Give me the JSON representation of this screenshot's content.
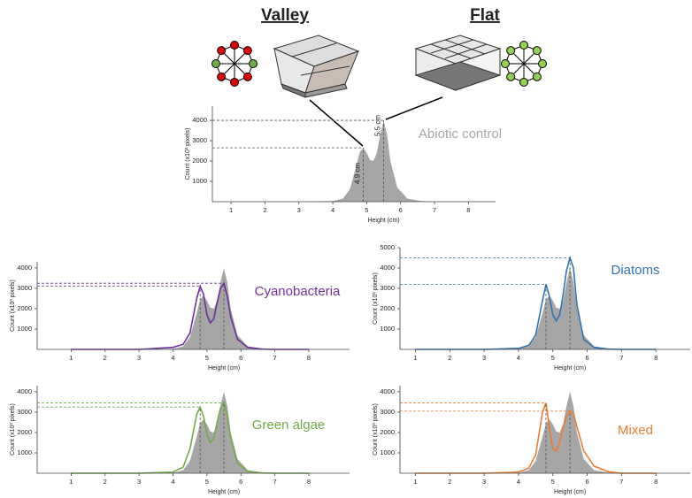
{
  "diagram": {
    "labels": [
      "Valley",
      "Flat"
    ]
  },
  "chart_data": [
    {
      "type": "line",
      "xlabel": "Height (cm)",
      "ylabel": "Count (x10³ pixels)",
      "xlim": [
        0.45,
        8.8
      ],
      "ylim": [
        0,
        4700
      ],
      "xticks": [
        1,
        2,
        3,
        4,
        5,
        6,
        7,
        8
      ],
      "yticks": [
        1000,
        2000,
        3000,
        4000
      ],
      "x": [
        1,
        3,
        4,
        4.3,
        4.5,
        4.7,
        4.8,
        4.9,
        5.0,
        5.1,
        5.2,
        5.3,
        5.4,
        5.5,
        5.6,
        5.7,
        5.9,
        6.2,
        6.6,
        7,
        8
      ],
      "series": [
        {
          "name": "Abiotic control",
          "color": "#a6a6a6",
          "fill": true,
          "values": [
            0,
            0,
            30,
            150,
            600,
            1800,
            2450,
            2650,
            2400,
            2050,
            2000,
            2400,
            3300,
            4000,
            3300,
            2000,
            700,
            150,
            30,
            0,
            0
          ]
        }
      ],
      "vlines": [
        4.9,
        5.5
      ],
      "hlines": [
        2650,
        4000
      ],
      "hline_color": "#555555",
      "annotations": [
        "4.9 cm",
        "5.5 cm"
      ]
    },
    {
      "type": "line",
      "xlabel": "Height (cm)",
      "ylabel": "Count (x10³ pixels)",
      "xlim": [
        0,
        9.2
      ],
      "ylim": [
        0,
        4300
      ],
      "xticks": [
        1,
        2,
        3,
        4,
        5,
        6,
        7,
        8
      ],
      "yticks": [
        1000,
        2000,
        3000,
        4000
      ],
      "x": [
        1,
        3,
        4,
        4.3,
        4.5,
        4.7,
        4.8,
        4.9,
        5.0,
        5.1,
        5.2,
        5.3,
        5.4,
        5.5,
        5.6,
        5.7,
        5.9,
        6.2,
        6.6,
        7,
        8
      ],
      "series": [
        {
          "color": "#a6a6a6",
          "fill": true,
          "values": [
            0,
            0,
            30,
            150,
            600,
            1800,
            2450,
            2650,
            2400,
            2050,
            2000,
            2400,
            3300,
            4000,
            3300,
            2000,
            700,
            150,
            30,
            0,
            0
          ]
        },
        {
          "name": "Cyanobacteria",
          "color": "#7030a0",
          "fill": false,
          "values": [
            0,
            0,
            100,
            250,
            800,
            2500,
            3100,
            2700,
            1700,
            1300,
            1500,
            2300,
            3000,
            3250,
            2600,
            1600,
            500,
            100,
            20,
            0,
            0
          ]
        }
      ],
      "vlines": [
        4.8,
        5.5
      ],
      "hlines": [
        3100,
        3250
      ],
      "hline_color": "#7030a0"
    },
    {
      "type": "line",
      "xlabel": "Height (cm)",
      "ylabel": "Count (x10³ pixels)",
      "xlim": [
        0.55,
        9.0
      ],
      "ylim": [
        0,
        5000
      ],
      "xticks": [
        1,
        2,
        3,
        4,
        5,
        6,
        7,
        8
      ],
      "yticks": [
        1000,
        2000,
        3000,
        4000,
        5000
      ],
      "x": [
        1,
        3,
        4,
        4.3,
        4.5,
        4.7,
        4.8,
        4.9,
        5.0,
        5.1,
        5.2,
        5.3,
        5.4,
        5.5,
        5.6,
        5.7,
        5.9,
        6.2,
        6.6,
        7,
        8
      ],
      "series": [
        {
          "color": "#a6a6a6",
          "fill": true,
          "values": [
            0,
            0,
            30,
            150,
            600,
            1800,
            2450,
            2650,
            2400,
            2050,
            2000,
            2400,
            3300,
            4000,
            3300,
            2000,
            700,
            150,
            30,
            0,
            0
          ]
        },
        {
          "name": "Diatoms",
          "color": "#2e75b6",
          "fill": false,
          "values": [
            0,
            0,
            50,
            200,
            700,
            2400,
            3200,
            2600,
            1700,
            1400,
            1700,
            2700,
            3900,
            4500,
            4000,
            2200,
            500,
            100,
            20,
            0,
            0
          ]
        }
      ],
      "vlines": [
        4.8,
        5.5
      ],
      "hlines": [
        3200,
        4500
      ],
      "hline_color": "#2e75b6"
    },
    {
      "type": "line",
      "xlabel": "Height (cm)",
      "ylabel": "Count (x10³ pixels)",
      "xlim": [
        0,
        9.2
      ],
      "ylim": [
        0,
        4300
      ],
      "xticks": [
        1,
        2,
        3,
        4,
        5,
        6,
        7,
        8
      ],
      "yticks": [
        1000,
        2000,
        3000,
        4000
      ],
      "x": [
        1,
        3,
        4,
        4.3,
        4.5,
        4.7,
        4.8,
        4.9,
        5.0,
        5.1,
        5.2,
        5.3,
        5.4,
        5.5,
        5.6,
        5.7,
        5.9,
        6.2,
        6.6,
        7,
        8
      ],
      "series": [
        {
          "color": "#a6a6a6",
          "fill": true,
          "values": [
            0,
            0,
            30,
            150,
            600,
            1800,
            2450,
            2650,
            2400,
            2050,
            2000,
            2400,
            3300,
            4000,
            3300,
            2000,
            700,
            150,
            30,
            0,
            0
          ]
        },
        {
          "name": "Green algae",
          "color": "#70ad47",
          "fill": false,
          "values": [
            0,
            0,
            60,
            300,
            1200,
            2900,
            3250,
            2800,
            1900,
            1500,
            1700,
            2500,
            3200,
            3450,
            2800,
            1700,
            500,
            100,
            20,
            0,
            0
          ]
        }
      ],
      "vlines": [
        4.8,
        5.5
      ],
      "hlines": [
        3250,
        3450
      ],
      "hline_color": "#70ad47"
    },
    {
      "type": "line",
      "xlabel": "Height (cm)",
      "ylabel": "Count (x10³ pixels)",
      "xlim": [
        0.55,
        9.0
      ],
      "ylim": [
        0,
        4300
      ],
      "xticks": [
        1,
        2,
        3,
        4,
        5,
        6,
        7,
        8
      ],
      "yticks": [
        1000,
        2000,
        3000,
        4000
      ],
      "x": [
        1,
        3,
        4,
        4.3,
        4.5,
        4.7,
        4.8,
        4.9,
        5.0,
        5.1,
        5.2,
        5.3,
        5.4,
        5.5,
        5.6,
        5.7,
        5.9,
        6.2,
        6.6,
        7,
        8
      ],
      "series": [
        {
          "color": "#a6a6a6",
          "fill": true,
          "values": [
            0,
            0,
            30,
            150,
            600,
            1800,
            2450,
            2650,
            2400,
            2050,
            2000,
            2400,
            3300,
            4000,
            3300,
            2000,
            700,
            150,
            30,
            0,
            0
          ]
        },
        {
          "name": "Mixed",
          "color": "#ed7d31",
          "fill": false,
          "values": [
            0,
            0,
            60,
            250,
            900,
            3000,
            3450,
            2200,
            1200,
            1100,
            1500,
            2300,
            2800,
            3050,
            2950,
            2300,
            1100,
            350,
            80,
            0,
            0
          ]
        }
      ],
      "vlines": [
        4.8,
        5.5
      ],
      "hlines": [
        3450,
        3050
      ],
      "hline_color": "#ed7d31"
    }
  ]
}
